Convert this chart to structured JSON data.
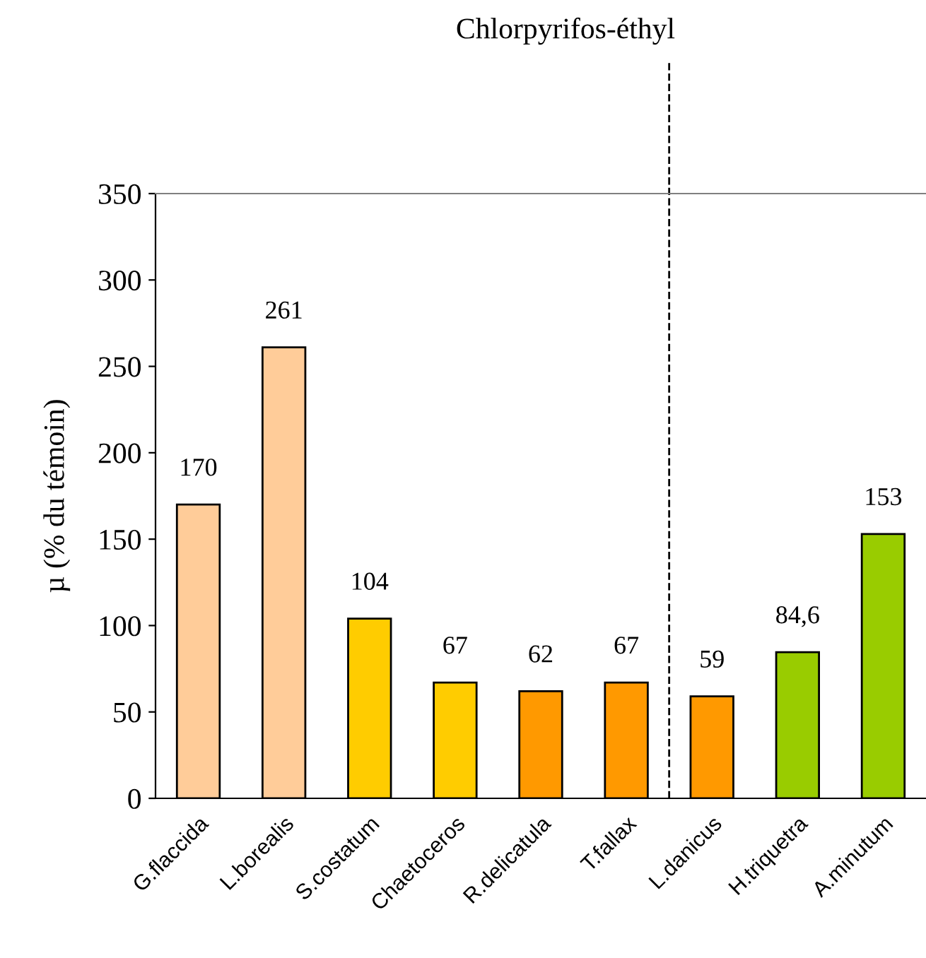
{
  "chart_data": {
    "type": "bar",
    "title": "Chlorpyrifos-éthyl",
    "ylabel": "µ (% du témoin)",
    "categories": [
      "G.flaccida",
      "L.borealis",
      "S.costatum",
      "Chaetoceros",
      "R.delicatula",
      "T.fallax",
      "L.danicus",
      "H.triquetra",
      "A.minutum"
    ],
    "values": [
      170,
      261,
      104,
      67,
      62,
      67,
      59,
      84.6,
      153
    ],
    "colors": [
      "#ffcc99",
      "#ffcc99",
      "#ffcc00",
      "#ffcc00",
      "#ff9900",
      "#ff9900",
      "#ff9900",
      "#99cc00",
      "#99cc00"
    ],
    "value_labels": [
      "170",
      "261",
      "104",
      "67",
      "62",
      "67",
      "59",
      "84,6",
      "153"
    ],
    "ylim": [
      0,
      350
    ],
    "yticks": [
      0,
      50,
      100,
      150,
      200,
      250,
      300,
      350
    ],
    "grid": false,
    "legend": false
  }
}
